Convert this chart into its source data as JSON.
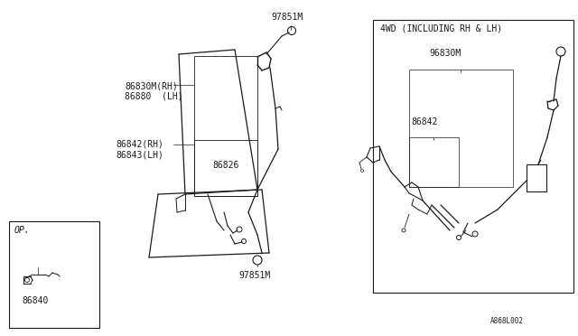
{
  "background_color": "#ffffff",
  "diagram_ref": "A868L002",
  "labels": {
    "top_bolt": "97851M",
    "rh_lh_upper": "86830M(RH)\n86880  (LH)",
    "rh_lh_lower": "86842(RH)\n86843(LH)",
    "center_part": "86826",
    "bottom_bolt": "97851M",
    "op_box_label": "OP.",
    "op_part": "86840",
    "4wd_title": "4WD (INCLUDING RH & LH)",
    "4wd_upper": "96830M",
    "4wd_lower": "86842"
  },
  "line_color": "#1a1a1a",
  "text_color": "#1a1a1a",
  "font_size": 7.0,
  "font_size_ref": 6.0
}
